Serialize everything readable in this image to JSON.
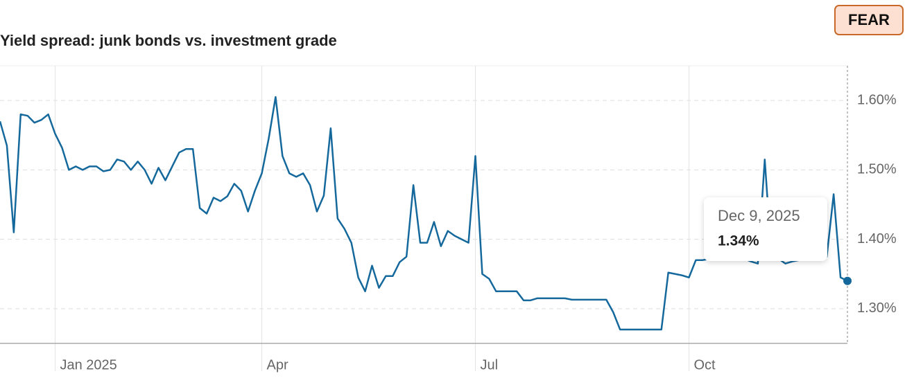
{
  "badge": "FEAR",
  "chart_data": {
    "type": "line",
    "title": "Yield spread: junk bonds vs. investment grade",
    "categories": [
      null,
      null,
      null,
      null,
      null,
      null,
      null,
      null,
      "Jan 2025",
      null,
      null,
      null,
      null,
      null,
      null,
      null,
      null,
      null,
      null,
      null,
      null,
      null,
      null,
      null,
      null,
      null,
      null,
      null,
      null,
      null,
      null,
      null,
      null,
      null,
      null,
      null,
      null,
      null,
      "Apr",
      null,
      null,
      null,
      null,
      null,
      null,
      null,
      null,
      null,
      null,
      null,
      null,
      null,
      null,
      null,
      null,
      null,
      null,
      null,
      null,
      null,
      null,
      null,
      null,
      null,
      null,
      null,
      null,
      null,
      null,
      "Jul",
      null,
      null,
      null,
      null,
      null,
      null,
      null,
      null,
      null,
      null,
      null,
      null,
      null,
      null,
      null,
      null,
      null,
      null,
      null,
      null,
      null,
      null,
      null,
      null,
      null,
      null,
      null,
      null,
      null,
      null,
      "Oct",
      null,
      null,
      null,
      null,
      null,
      null,
      null,
      null,
      null,
      null,
      null,
      null,
      null,
      null,
      null,
      null,
      null,
      null,
      null,
      null,
      null,
      null,
      null
    ],
    "values": [
      1.57,
      1.535,
      1.41,
      1.58,
      1.578,
      1.568,
      1.572,
      1.58,
      1.552,
      1.532,
      1.5,
      1.505,
      1.5,
      1.505,
      1.505,
      1.498,
      1.5,
      1.515,
      1.512,
      1.5,
      1.512,
      1.5,
      1.48,
      1.503,
      1.485,
      1.505,
      1.525,
      1.53,
      1.53,
      1.445,
      1.437,
      1.46,
      1.455,
      1.462,
      1.48,
      1.47,
      1.44,
      1.47,
      1.495,
      1.545,
      1.605,
      1.52,
      1.495,
      1.49,
      1.495,
      1.478,
      1.44,
      1.463,
      1.56,
      1.43,
      1.415,
      1.395,
      1.345,
      1.325,
      1.362,
      1.33,
      1.347,
      1.347,
      1.367,
      1.375,
      1.478,
      1.395,
      1.395,
      1.425,
      1.39,
      1.412,
      1.405,
      1.4,
      1.395,
      1.52,
      1.35,
      1.343,
      1.325,
      1.325,
      1.325,
      1.325,
      1.312,
      1.312,
      1.315,
      1.315,
      1.315,
      1.315,
      1.315,
      1.313,
      1.313,
      1.313,
      1.313,
      1.313,
      1.313,
      1.295,
      1.27,
      1.27,
      1.27,
      1.27,
      1.27,
      1.27,
      1.27,
      1.352,
      1.35,
      1.348,
      1.345,
      1.37,
      1.37,
      1.372,
      1.375,
      1.372,
      1.375,
      1.37,
      1.372,
      1.368,
      1.365,
      1.515,
      1.37,
      1.372,
      1.365,
      1.368,
      1.37,
      1.372,
      1.375,
      1.378,
      1.375,
      1.465,
      1.345,
      1.34
    ],
    "color": "#14689c",
    "ylim": [
      1.25,
      1.65
    ],
    "yticks": [
      {
        "value": 1.3,
        "label": "1.30%"
      },
      {
        "value": 1.4,
        "label": "1.40%"
      },
      {
        "value": 1.5,
        "label": "1.50%"
      },
      {
        "value": 1.6,
        "label": "1.60%"
      }
    ],
    "grid": true,
    "tooltip": {
      "date": "Dec 9, 2025",
      "value_label": "1.34%"
    }
  }
}
